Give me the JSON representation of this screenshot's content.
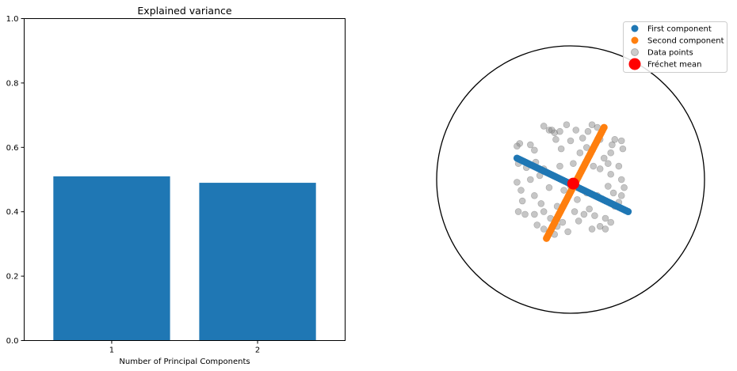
{
  "chart_data": [
    {
      "type": "bar",
      "title": "Explained variance",
      "xlabel": "Number of Principal Components",
      "ylabel": "",
      "categories": [
        "1",
        "2"
      ],
      "values": [
        0.51,
        0.49
      ],
      "ylim": [
        0,
        1
      ],
      "yticks": [
        "0.0",
        "0.2",
        "0.4",
        "0.6",
        "0.8",
        "1.0"
      ],
      "color": "#1f77b4",
      "grid": false
    },
    {
      "type": "scatter",
      "title": "",
      "xlabel": "",
      "ylabel": "",
      "description_of_axes": "Poincare disk, no axes shown",
      "xlim": [
        -1,
        1
      ],
      "ylim": [
        -1,
        1
      ],
      "legend_position": "top-right",
      "mean": {
        "x": 0.02,
        "y": -0.03
      },
      "first_component_ends": {
        "from": [
          -0.4,
          0.16
        ],
        "to": [
          0.43,
          -0.24
        ]
      },
      "second_component_ends": {
        "from": [
          -0.18,
          -0.44
        ],
        "to": [
          0.25,
          0.39
        ]
      },
      "series": [
        {
          "name": "First component",
          "color": "#1f77b4"
        },
        {
          "name": "Second component",
          "color": "#ff7f0e"
        },
        {
          "name": "Data points",
          "color": "#808080"
        },
        {
          "name": "Fréchet mean",
          "color": "#ff0000"
        }
      ],
      "data_points": [
        [
          -0.38,
          0.27
        ],
        [
          -0.4,
          0.25
        ],
        [
          -0.3,
          0.26
        ],
        [
          -0.27,
          0.22
        ],
        [
          -0.2,
          0.4
        ],
        [
          -0.16,
          0.37
        ],
        [
          -0.12,
          0.35
        ],
        [
          -0.08,
          0.36
        ],
        [
          -0.03,
          0.41
        ],
        [
          0.0,
          0.29
        ],
        [
          0.04,
          0.37
        ],
        [
          0.09,
          0.31
        ],
        [
          0.13,
          0.36
        ],
        [
          0.12,
          0.24
        ],
        [
          0.16,
          0.41
        ],
        [
          0.2,
          0.39
        ],
        [
          0.22,
          0.3
        ],
        [
          0.31,
          0.26
        ],
        [
          0.33,
          0.3
        ],
        [
          0.38,
          0.29
        ],
        [
          0.39,
          0.23
        ],
        [
          -0.07,
          0.23
        ],
        [
          -0.11,
          0.3
        ],
        [
          -0.14,
          0.37
        ],
        [
          -0.39,
          0.12
        ],
        [
          -0.33,
          0.09
        ],
        [
          -0.26,
          0.13
        ],
        [
          -0.23,
          0.03
        ],
        [
          -0.3,
          0.0
        ],
        [
          -0.4,
          -0.02
        ],
        [
          -0.37,
          -0.08
        ],
        [
          -0.27,
          -0.12
        ],
        [
          -0.22,
          -0.18
        ],
        [
          -0.36,
          -0.16
        ],
        [
          -0.39,
          -0.24
        ],
        [
          -0.34,
          -0.26
        ],
        [
          -0.27,
          -0.26
        ],
        [
          -0.2,
          -0.24
        ],
        [
          -0.15,
          -0.29
        ],
        [
          -0.1,
          -0.35
        ],
        [
          -0.02,
          -0.39
        ],
        [
          -0.06,
          -0.32
        ],
        [
          -0.12,
          -0.41
        ],
        [
          -0.2,
          -0.37
        ],
        [
          0.03,
          -0.24
        ],
        [
          0.06,
          -0.31
        ],
        [
          0.1,
          -0.26
        ],
        [
          0.14,
          -0.22
        ],
        [
          0.18,
          -0.27
        ],
        [
          0.16,
          -0.37
        ],
        [
          0.22,
          -0.35
        ],
        [
          0.26,
          -0.29
        ],
        [
          0.3,
          -0.32
        ],
        [
          0.26,
          -0.37
        ],
        [
          0.33,
          -0.2
        ],
        [
          0.36,
          -0.17
        ],
        [
          0.38,
          -0.12
        ],
        [
          0.32,
          -0.1
        ],
        [
          0.28,
          -0.05
        ],
        [
          0.3,
          0.04
        ],
        [
          0.36,
          0.1
        ],
        [
          0.38,
          0.0
        ],
        [
          0.4,
          -0.06
        ],
        [
          0.28,
          0.12
        ],
        [
          0.22,
          0.08
        ],
        [
          0.17,
          0.1
        ],
        [
          0.25,
          0.16
        ],
        [
          0.2,
          -0.12
        ],
        [
          0.12,
          -0.1
        ],
        [
          0.05,
          -0.15
        ],
        [
          -0.1,
          -0.2
        ],
        [
          -0.05,
          -0.08
        ],
        [
          -0.16,
          -0.06
        ],
        [
          -0.2,
          0.08
        ],
        [
          0.02,
          0.12
        ],
        [
          0.07,
          0.2
        ],
        [
          0.0,
          -0.05
        ],
        [
          -0.08,
          0.1
        ],
        [
          0.3,
          0.2
        ],
        [
          -0.25,
          -0.34
        ]
      ]
    }
  ]
}
